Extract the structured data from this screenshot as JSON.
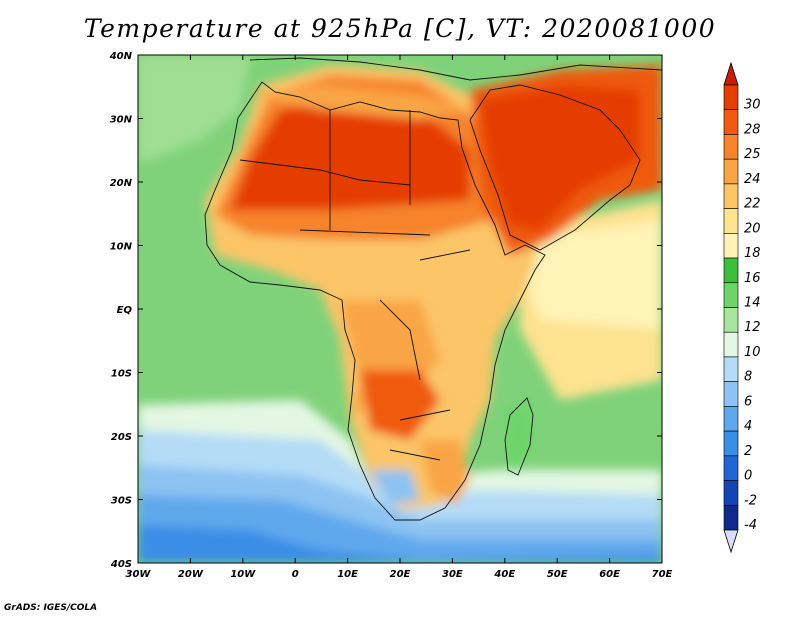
{
  "title": "Temperature at 925hPa [C], VT: 2020081000",
  "credit": "GrADS: IGES/COLA",
  "axes": {
    "lon_labels": [
      "30W",
      "20W",
      "10W",
      "0",
      "10E",
      "20E",
      "30E",
      "40E",
      "50E",
      "60E",
      "70E"
    ],
    "lat_labels": [
      "40N",
      "30N",
      "20N",
      "10N",
      "EQ",
      "10S",
      "20S",
      "30S",
      "40S"
    ]
  },
  "colorbar": {
    "labels": [
      "30",
      "28",
      "25",
      "24",
      "22",
      "20",
      "18",
      "16",
      "14",
      "12",
      "10",
      "8",
      "6",
      "4",
      "2",
      "0",
      "-2",
      "-4"
    ],
    "colors": [
      "#e53e00",
      "#ef5a10",
      "#f7832a",
      "#f9a545",
      "#fbc568",
      "#fde28f",
      "#fff3b5",
      "#3dbe3d",
      "#6ed46a",
      "#a8e6a0",
      "#e3f7e3",
      "#b4dcf6",
      "#8cc3f2",
      "#5fa8ec",
      "#3b8ee6",
      "#2166d6",
      "#1346b4",
      "#0f2a8a"
    ],
    "top_arrow_color": "#c81e00",
    "bottom_arrow_color": "#d8dcff"
  }
}
